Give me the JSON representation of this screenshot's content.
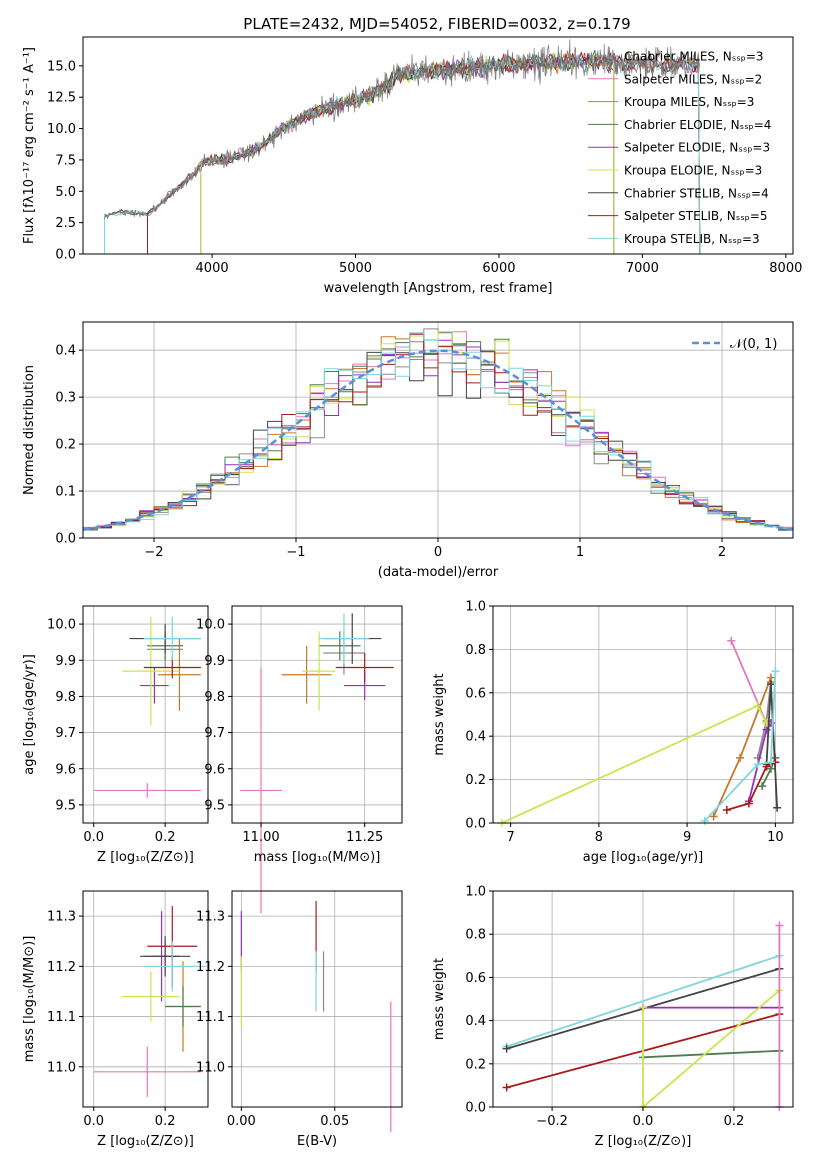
{
  "figure": {
    "title": "PLATE=2432, MJD=54052, FIBERID=0032, z=0.179"
  },
  "colors": {
    "Chabrier MILES": "#8c8c8c",
    "Salpeter MILES": "#e377c2",
    "Kroupa MILES": "#c8782a",
    "Chabrier ELODIE": "#4e7d4e",
    "Salpeter ELODIE": "#9a2fbf",
    "Kroupa ELODIE": "#c8e64f",
    "Chabrier STELIB": "#444444",
    "Salpeter STELIB": "#a61c1c",
    "Kroupa STELIB": "#7fd6e0",
    "data": "#777777",
    "normal": "#5b8fd9"
  },
  "chart_data": [
    {
      "id": "spectrum",
      "type": "line",
      "xlabel": "wavelength [Angstrom, rest frame]",
      "ylabel": "Flux [fλ10⁻¹⁷ erg cm⁻² s⁻¹ A⁻¹]",
      "xlim": [
        3100,
        8050
      ],
      "ylim": [
        0,
        17.3
      ],
      "xticks": [
        "4000",
        "5000",
        "6000",
        "7000",
        "8000"
      ],
      "yticks": [
        "0.0",
        "2.5",
        "5.0",
        "7.5",
        "10.0",
        "12.5",
        "15.0"
      ],
      "grid": false,
      "legend_position": "upper-right",
      "legend": [
        "Chabrier MILES, Nₛₛₚ=3",
        "Salpeter MILES, Nₛₛₚ=2",
        "Kroupa MILES, Nₛₛₚ=3",
        "Chabrier ELODIE, Nₛₛₚ=4",
        "Salpeter ELODIE, Nₛₛₚ=3",
        "Kroupa ELODIE, Nₛₛₚ=3",
        "Chabrier STELIB, Nₛₛₚ=4",
        "Salpeter STELIB, Nₛₛₚ=5",
        "Kroupa STELIB, Nₛₛₚ=3"
      ],
      "continuum": [
        [
          3250,
          3.0
        ],
        [
          3400,
          3.4
        ],
        [
          3550,
          3.1
        ],
        [
          3650,
          4.2
        ],
        [
          3800,
          5.6
        ],
        [
          3950,
          7.4
        ],
        [
          4100,
          7.6
        ],
        [
          4300,
          8.2
        ],
        [
          4500,
          10.1
        ],
        [
          4700,
          11.2
        ],
        [
          4900,
          12.0
        ],
        [
          5100,
          12.6
        ],
        [
          5200,
          13.4
        ],
        [
          5300,
          14.3
        ],
        [
          5500,
          14.6
        ],
        [
          5800,
          14.9
        ],
        [
          6000,
          15.0
        ],
        [
          6300,
          15.3
        ],
        [
          6600,
          15.4
        ],
        [
          6800,
          15.3
        ],
        [
          7100,
          15.2
        ],
        [
          7400,
          15.1
        ]
      ],
      "data_range": [
        3250,
        7400
      ]
    },
    {
      "id": "residuals",
      "type": "histogram",
      "xlabel": "(data-model)/error",
      "ylabel": "Normed distribution",
      "xlim": [
        -2.5,
        2.5
      ],
      "ylim": [
        0,
        0.46
      ],
      "xticks": [
        "−2",
        "−1",
        "0",
        "1",
        "2"
      ],
      "yticks": [
        "0.0",
        "0.1",
        "0.2",
        "0.3",
        "0.4"
      ],
      "grid": true,
      "bin_width": 0.1,
      "legend_position": "upper-right",
      "legend": [
        "𝒩(0, 1)"
      ],
      "series_peak": 0.4
    },
    {
      "id": "age-Z",
      "type": "scatter",
      "xlabel": "Z [log₁₀(Z/Z⊙)]",
      "ylabel": "age  [log₁₀(age/yr)]",
      "xlim": [
        -0.03,
        0.32
      ],
      "ylim": [
        9.45,
        10.05
      ],
      "xticks": [
        "0.0",
        "0.2"
      ],
      "yticks": [
        "9.5",
        "9.6",
        "9.7",
        "9.8",
        "9.9",
        "10.0"
      ],
      "grid": true,
      "points": [
        {
          "series": "Chabrier MILES",
          "x": 0.2,
          "y": 9.93,
          "xerr": 0.05,
          "yerr": 0.05
        },
        {
          "series": "Salpeter MILES",
          "x": 0.15,
          "y": 9.54,
          "xerr": 0.15,
          "yerr": 0.02
        },
        {
          "series": "Kroupa MILES",
          "x": 0.24,
          "y": 9.86,
          "xerr": 0.06,
          "yerr": 0.1
        },
        {
          "series": "Chabrier ELODIE",
          "x": 0.2,
          "y": 9.94,
          "xerr": 0.05,
          "yerr": 0.04
        },
        {
          "series": "Salpeter ELODIE",
          "x": 0.17,
          "y": 9.83,
          "xerr": 0.04,
          "yerr": 0.05
        },
        {
          "series": "Kroupa ELODIE",
          "x": 0.16,
          "y": 9.87,
          "xerr": 0.08,
          "yerr": 0.15
        },
        {
          "series": "Chabrier STELIB",
          "x": 0.2,
          "y": 9.96,
          "xerr": 0.1,
          "yerr": 0.04
        },
        {
          "series": "Salpeter STELIB",
          "x": 0.22,
          "y": 9.88,
          "xerr": 0.08,
          "yerr": 0.03
        },
        {
          "series": "Kroupa STELIB",
          "x": 0.22,
          "y": 9.96,
          "xerr": 0.08,
          "yerr": 0.06
        }
      ]
    },
    {
      "id": "age-mass",
      "type": "scatter",
      "xlabel": "mass [log₁₀(M/M⊙)]",
      "xlim": [
        10.93,
        11.34
      ],
      "ylim": [
        9.45,
        10.05
      ],
      "xticks": [
        "11.00",
        "11.25"
      ],
      "yticks": [
        "9.5",
        "9.6",
        "9.7",
        "9.8",
        "9.9",
        "10.0"
      ],
      "grid": true,
      "points": [
        {
          "series": "Chabrier MILES",
          "x": 11.2,
          "y": 9.92,
          "xerr": 0.05,
          "yerr": 0.06
        },
        {
          "series": "Salpeter MILES",
          "x": 11.0,
          "y": 9.54,
          "xerr": 0.05,
          "yerr": 0.34
        },
        {
          "series": "Kroupa MILES",
          "x": 11.11,
          "y": 9.86,
          "xerr": 0.06,
          "yerr": 0.08
        },
        {
          "series": "Chabrier ELODIE",
          "x": 11.19,
          "y": 9.94,
          "xerr": 0.05,
          "yerr": 0.04
        },
        {
          "series": "Salpeter ELODIE",
          "x": 11.25,
          "y": 9.83,
          "xerr": 0.05,
          "yerr": 0.04
        },
        {
          "series": "Kroupa ELODIE",
          "x": 11.14,
          "y": 9.87,
          "xerr": 0.04,
          "yerr": 0.11
        },
        {
          "series": "Chabrier STELIB",
          "x": 11.22,
          "y": 9.96,
          "xerr": 0.07,
          "yerr": 0.07
        },
        {
          "series": "Salpeter STELIB",
          "x": 11.25,
          "y": 9.88,
          "xerr": 0.07,
          "yerr": 0.04
        },
        {
          "series": "Kroupa STELIB",
          "x": 11.2,
          "y": 9.96,
          "xerr": 0.06,
          "yerr": 0.07
        }
      ]
    },
    {
      "id": "weight-age",
      "type": "line",
      "xlabel": "age  [log₁₀(age/yr)]",
      "ylabel": "mass weight",
      "xlim": [
        6.8,
        10.2
      ],
      "ylim": [
        0,
        1
      ],
      "xticks": [
        "7",
        "8",
        "9",
        "10"
      ],
      "yticks": [
        "0.0",
        "0.2",
        "0.4",
        "0.6",
        "0.8",
        "1.0"
      ],
      "grid": true,
      "series": [
        {
          "series": "Chabrier MILES",
          "x": [
            9.8,
            9.9,
            9.95
          ],
          "y": [
            0.3,
            0.47,
            0.65
          ]
        },
        {
          "series": "Salpeter MILES",
          "x": [
            9.5,
            9.9
          ],
          "y": [
            0.84,
            0.46
          ]
        },
        {
          "series": "Kroupa MILES",
          "x": [
            9.3,
            9.6,
            9.95
          ],
          "y": [
            0.03,
            0.3,
            0.67
          ]
        },
        {
          "series": "Chabrier ELODIE",
          "x": [
            9.85,
            9.95,
            10.0
          ],
          "y": [
            0.17,
            0.25,
            0.3
          ]
        },
        {
          "series": "Salpeter ELODIE",
          "x": [
            9.7,
            9.9,
            9.95
          ],
          "y": [
            0.1,
            0.43,
            0.46
          ]
        },
        {
          "series": "Kroupa ELODIE",
          "x": [
            6.9,
            9.8,
            9.9
          ],
          "y": [
            0.0,
            0.54,
            0.46
          ]
        },
        {
          "series": "Chabrier STELIB",
          "x": [
            9.9,
            9.95,
            10.02
          ],
          "y": [
            0.27,
            0.64,
            0.07
          ]
        },
        {
          "series": "Salpeter STELIB",
          "x": [
            9.45,
            9.7,
            9.9,
            10.0
          ],
          "y": [
            0.06,
            0.09,
            0.26,
            0.28
          ]
        },
        {
          "series": "Kroupa STELIB",
          "x": [
            9.2,
            9.8,
            9.95,
            10.0
          ],
          "y": [
            0.01,
            0.27,
            0.28,
            0.7
          ]
        }
      ]
    },
    {
      "id": "mass-Z",
      "type": "scatter",
      "xlabel": "Z [log₁₀(Z/Z⊙)]",
      "ylabel": "mass [log₁₀(M/M⊙)]",
      "xlim": [
        -0.03,
        0.32
      ],
      "ylim": [
        10.92,
        11.35
      ],
      "xticks": [
        "0.0",
        "0.2"
      ],
      "yticks": [
        "11.0",
        "11.1",
        "11.2",
        "11.3"
      ],
      "grid": true,
      "points": [
        {
          "series": "Chabrier MILES",
          "x": 0.2,
          "y": 11.22,
          "xerr": 0.04,
          "yerr": 0.03
        },
        {
          "series": "Salpeter MILES",
          "x": 0.15,
          "y": 10.99,
          "xerr": 0.15,
          "yerr": 0.05
        },
        {
          "series": "Kroupa MILES",
          "x": 0.25,
          "y": 11.12,
          "xerr": 0.05,
          "yerr": 0.09
        },
        {
          "series": "Chabrier ELODIE",
          "x": 0.25,
          "y": 11.12,
          "xerr": 0.05,
          "yerr": 0.04
        },
        {
          "series": "Salpeter ELODIE",
          "x": 0.19,
          "y": 11.22,
          "xerr": 0.05,
          "yerr": 0.09
        },
        {
          "series": "Kroupa ELODIE",
          "x": 0.16,
          "y": 11.14,
          "xerr": 0.08,
          "yerr": 0.05
        },
        {
          "series": "Chabrier STELIB",
          "x": 0.2,
          "y": 11.22,
          "xerr": 0.07,
          "yerr": 0.04
        },
        {
          "series": "Salpeter STELIB",
          "x": 0.22,
          "y": 11.24,
          "xerr": 0.07,
          "yerr": 0.08
        },
        {
          "series": "Kroupa STELIB",
          "x": 0.22,
          "y": 11.2,
          "xerr": 0.08,
          "yerr": 0.05
        }
      ]
    },
    {
      "id": "mass-EBV",
      "type": "scatter",
      "xlabel": "E(B-V)",
      "xlim": [
        -0.005,
        0.086
      ],
      "ylim": [
        10.92,
        11.35
      ],
      "xticks": [
        "0.00",
        "0.05"
      ],
      "yticks": [
        "11.0",
        "11.1",
        "11.2",
        "11.3"
      ],
      "grid": true,
      "points": [
        {
          "series": "Salpeter ELODIE",
          "x": 0.0,
          "y": 11.25,
          "yerr": 0.06
        },
        {
          "series": "Kroupa ELODIE",
          "x": 0.0,
          "y": 11.15,
          "yerr": 0.07
        },
        {
          "series": "Salpeter STELIB",
          "x": 0.04,
          "y": 11.26,
          "yerr": 0.07
        },
        {
          "series": "Kroupa STELIB",
          "x": 0.04,
          "y": 11.17,
          "yerr": 0.06
        },
        {
          "series": "Chabrier MILES",
          "x": 0.044,
          "y": 11.17,
          "yerr": 0.06
        },
        {
          "series": "Salpeter MILES",
          "x": 0.08,
          "y": 11.0,
          "yerr": 0.13
        }
      ]
    },
    {
      "id": "weight-Z",
      "type": "line",
      "xlabel": "Z [log₁₀(Z/Z⊙)]",
      "ylabel": "mass weight",
      "xlim": [
        -0.33,
        0.33
      ],
      "ylim": [
        0,
        1
      ],
      "xticks": [
        "−0.2",
        "0.0",
        "0.2"
      ],
      "yticks": [
        "0.0",
        "0.2",
        "0.4",
        "0.6",
        "0.8",
        "1.0"
      ],
      "grid": true,
      "series": [
        {
          "series": "Kroupa STELIB",
          "x": [
            -0.3,
            0.3
          ],
          "y": [
            0.28,
            0.7
          ]
        },
        {
          "series": "Chabrier STELIB",
          "x": [
            -0.3,
            0.3
          ],
          "y": [
            0.27,
            0.64
          ]
        },
        {
          "series": "Salpeter STELIB",
          "x": [
            -0.3,
            0.3
          ],
          "y": [
            0.09,
            0.43
          ]
        },
        {
          "series": "Salpeter ELODIE",
          "x": [
            0.0,
            0.3
          ],
          "y": [
            0.46,
            0.46
          ]
        },
        {
          "series": "Chabrier ELODIE",
          "x": [
            0.0,
            0.3
          ],
          "y": [
            0.23,
            0.26
          ]
        },
        {
          "series": "Kroupa ELODIE",
          "x": [
            0.0,
            0.0,
            0.3
          ],
          "y": [
            0.46,
            0.0,
            0.54
          ]
        },
        {
          "series": "Salpeter MILES",
          "x": [
            0.3,
            0.3
          ],
          "y": [
            0.84,
            0.0
          ]
        }
      ]
    }
  ]
}
